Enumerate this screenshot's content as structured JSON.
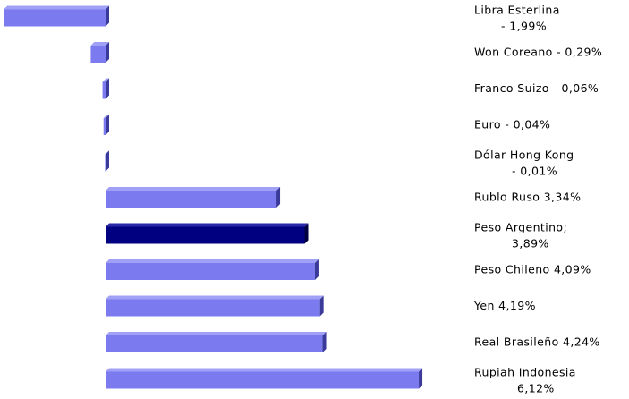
{
  "chart_data": {
    "type": "bar",
    "orientation": "horizontal",
    "categories": [
      "Libra Esterlina",
      "Won Coreano",
      "Franco Suizo",
      "Euro",
      "Dólar Hong Kong",
      "Rublo Ruso",
      "Peso Argentino;",
      "Peso Chileno",
      "Yen",
      "Real Brasileño",
      "Rupiah Indonesia"
    ],
    "values": [
      -1.99,
      -0.29,
      -0.06,
      -0.04,
      -0.01,
      3.34,
      3.89,
      4.09,
      4.19,
      4.24,
      6.12
    ],
    "value_labels": [
      "- 1,99%",
      "- 0,29%",
      "- 0,06%",
      "- 0,04%",
      "- 0,01%",
      "3,34%",
      "3,89%",
      "4,09%",
      "4,19%",
      "4,24%",
      "6,12%"
    ],
    "colors": [
      "#7b7bef",
      "#7b7bef",
      "#7b7bef",
      "#7b7bef",
      "#7b7bef",
      "#7b7bef",
      "#000080",
      "#7b7bef",
      "#7b7bef",
      "#7b7bef",
      "#7b7bef"
    ]
  }
}
